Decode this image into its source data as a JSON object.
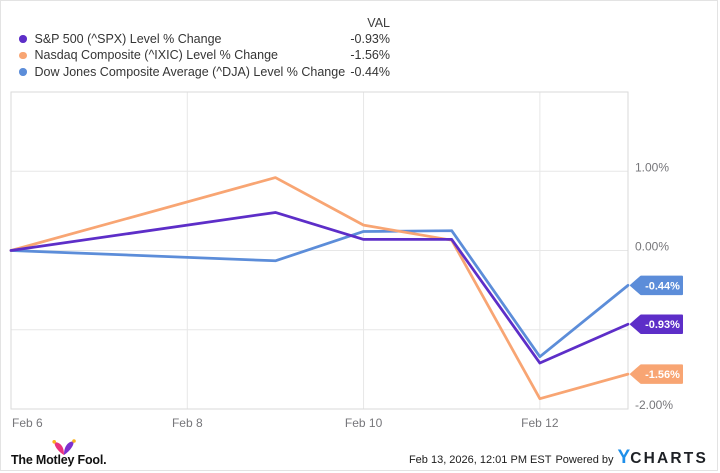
{
  "legend": {
    "val_header": "VAL"
  },
  "chart_data": {
    "type": "line",
    "title": "",
    "x": [
      "Feb 6",
      "Feb 9",
      "Feb 10",
      "Feb 11",
      "Feb 12",
      "Feb 13"
    ],
    "x_day_index": [
      0,
      3,
      4,
      5,
      6,
      7
    ],
    "total_days": 7,
    "series": [
      {
        "name": "S&P 500 (^SPX) Level % Change",
        "val": "-0.93%",
        "color": "#5d2ec8",
        "values": [
          0,
          0.48,
          0.14,
          0.14,
          -1.42,
          -0.93
        ]
      },
      {
        "name": "Nasdaq Composite (^IXIC) Level % Change",
        "val": "-1.56%",
        "color": "#f8a573",
        "values": [
          0,
          0.92,
          0.32,
          0.13,
          -1.87,
          -1.56
        ]
      },
      {
        "name": "Dow Jones Composite Average (^DJA) Level % Change",
        "val": "-0.44%",
        "color": "#5c8dd9",
        "values": [
          0,
          -0.13,
          0.24,
          0.25,
          -1.34,
          -0.44
        ]
      }
    ],
    "ylim": [
      -2,
      2
    ],
    "yticks": [
      {
        "value": 1,
        "label": "1.00%"
      },
      {
        "value": 0,
        "label": "0.00%"
      },
      {
        "value": -2,
        "label": "-2.00%"
      }
    ],
    "ygrid_values": [
      1,
      0,
      -1
    ],
    "xticks": [
      {
        "day": 0,
        "label": "Feb 6"
      },
      {
        "day": 2,
        "label": "Feb 8"
      },
      {
        "day": 4,
        "label": "Feb 10"
      },
      {
        "day": 6,
        "label": "Feb 12"
      }
    ],
    "grid": true,
    "legend_position": "top-left",
    "grid_color": "#e7e7e7",
    "border_color": "#dadada",
    "tick_label_color": "#76767a"
  },
  "footer": {
    "brand": "The Motley Fool.",
    "timestamp": "Feb 13, 2026, 12:01 PM EST",
    "powered_by": "Powered by",
    "ycharts_y": "Y",
    "ycharts_charts": "CHARTS"
  },
  "palette": {
    "cap_left_lobe": "#e9337e",
    "cap_right_lobe": "#7e30cf",
    "cap_bell": "#f9b21d",
    "ycharts_blue": "#1e8fea"
  }
}
